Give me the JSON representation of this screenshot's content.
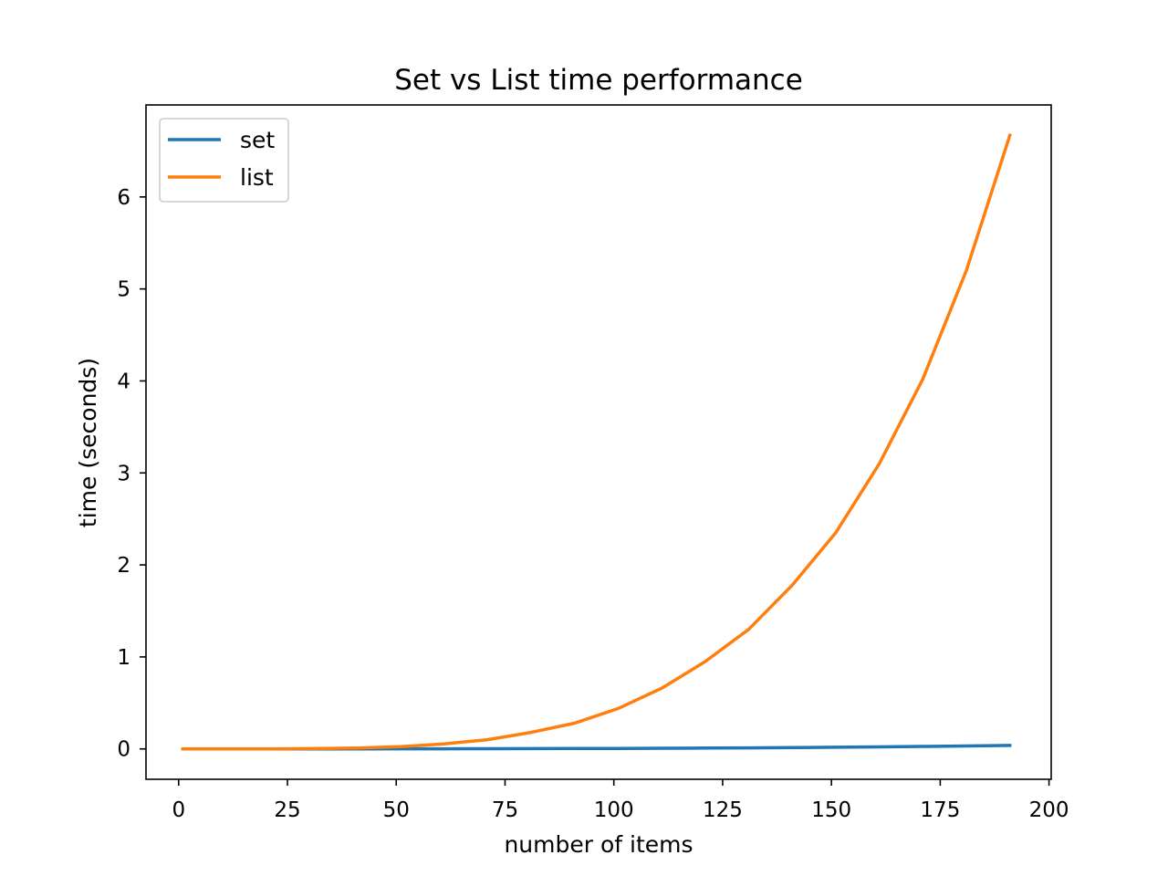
{
  "chart_data": {
    "type": "line",
    "title": "Set vs List time performance",
    "xlabel": "number of items",
    "ylabel": "time (seconds)",
    "xlim": [
      -7.5,
      200.5
    ],
    "ylim": [
      -0.33,
      7.0
    ],
    "x_ticks": [
      0,
      25,
      50,
      75,
      100,
      125,
      150,
      175,
      200
    ],
    "y_ticks": [
      0,
      1,
      2,
      3,
      4,
      5,
      6
    ],
    "grid": false,
    "legend_position": "upper left",
    "x": [
      1,
      11,
      21,
      31,
      41,
      51,
      61,
      71,
      81,
      91,
      101,
      111,
      121,
      131,
      141,
      151,
      161,
      171,
      181,
      191
    ],
    "series": [
      {
        "name": "set",
        "color": "#1f77b4",
        "values": [
          0.0,
          0.0,
          0.0,
          0.0,
          0.0,
          0.001,
          0.001,
          0.002,
          0.003,
          0.004,
          0.005,
          0.007,
          0.009,
          0.011,
          0.014,
          0.018,
          0.022,
          0.027,
          0.032,
          0.038
        ]
      },
      {
        "name": "list",
        "color": "#ff7f0e",
        "values": [
          0.0,
          0.0,
          0.0,
          0.003,
          0.01,
          0.025,
          0.055,
          0.1,
          0.18,
          0.28,
          0.44,
          0.66,
          0.95,
          1.3,
          1.78,
          2.35,
          3.1,
          4.02,
          5.2,
          6.67
        ]
      }
    ]
  }
}
